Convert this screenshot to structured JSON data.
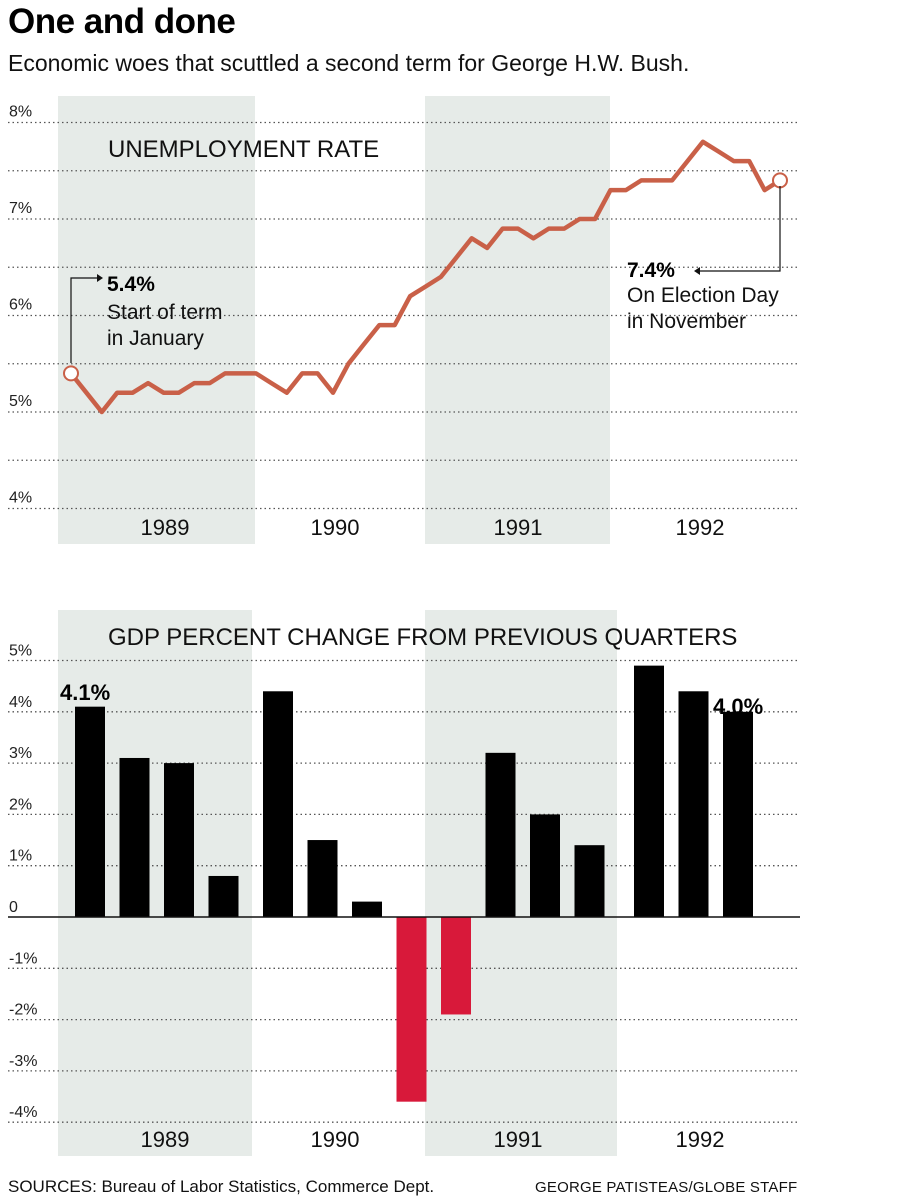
{
  "title": "One and done",
  "subtitle": "Economic woes that scuttled a second term for George H.W. Bush.",
  "sources": "SOURCES: Bureau of Labor Statistics, Commerce Dept.",
  "credit": "GEORGE PATISTEAS/GLOBE STAFF",
  "colors": {
    "shade": "#e6ebe8",
    "line": "#c96048",
    "bar_positive": "#000000",
    "bar_negative": "#d8193a",
    "grid": "#555555"
  },
  "chart_data": [
    {
      "type": "line",
      "title": "UNEMPLOYMENT RATE",
      "unit": "percent",
      "ylim": [
        4,
        8
      ],
      "y_ticks": [
        "4%",
        "5%",
        "6%",
        "7%",
        "8%"
      ],
      "year_labels": [
        "1989",
        "1990",
        "1991",
        "1992"
      ],
      "shaded_years": [
        "1989",
        "1991"
      ],
      "grid": true,
      "series": [
        {
          "x": [
            "1989-01",
            "1989-02",
            "1989-03",
            "1989-04",
            "1989-05",
            "1989-06",
            "1989-07",
            "1989-08",
            "1989-09",
            "1989-10",
            "1989-11",
            "1989-12",
            "1990-01",
            "1990-02",
            "1990-03",
            "1990-04",
            "1990-05",
            "1990-06",
            "1990-07",
            "1990-08",
            "1990-09",
            "1990-10",
            "1990-11",
            "1990-12",
            "1991-01",
            "1991-02",
            "1991-03",
            "1991-04",
            "1991-05",
            "1991-06",
            "1991-07",
            "1991-08",
            "1991-09",
            "1991-10",
            "1991-11",
            "1991-12",
            "1992-01",
            "1992-02",
            "1992-03",
            "1992-04",
            "1992-05",
            "1992-06",
            "1992-07",
            "1992-08",
            "1992-09",
            "1992-10",
            "1992-11"
          ],
          "values": [
            5.4,
            5.2,
            5.0,
            5.2,
            5.2,
            5.3,
            5.2,
            5.2,
            5.3,
            5.3,
            5.4,
            5.4,
            5.4,
            5.3,
            5.2,
            5.4,
            5.4,
            5.2,
            5.5,
            5.7,
            5.9,
            5.9,
            6.2,
            6.3,
            6.4,
            6.6,
            6.8,
            6.7,
            6.9,
            6.9,
            6.8,
            6.9,
            6.9,
            7.0,
            7.0,
            7.3,
            7.3,
            7.4,
            7.4,
            7.4,
            7.6,
            7.8,
            7.7,
            7.6,
            7.6,
            7.3,
            7.4
          ]
        }
      ],
      "annotations": [
        {
          "value": "5.4%",
          "text": [
            "Start of term",
            "in January"
          ]
        },
        {
          "value": "7.4%",
          "text": [
            "On Election Day",
            "in November"
          ]
        }
      ]
    },
    {
      "type": "bar",
      "title": "GDP PERCENT CHANGE FROM PREVIOUS QUARTERS",
      "unit": "percent",
      "ylim": [
        -4,
        5
      ],
      "y_ticks": [
        "-4%",
        "-3%",
        "-2%",
        "-1%",
        "0",
        "1%",
        "2%",
        "3%",
        "4%",
        "5%"
      ],
      "year_labels": [
        "1989",
        "1990",
        "1991",
        "1992"
      ],
      "shaded_years": [
        "1989",
        "1991"
      ],
      "grid": true,
      "categories": [
        "1989 Q1",
        "1989 Q2",
        "1989 Q3",
        "1989 Q4",
        "1990 Q1",
        "1990 Q2",
        "1990 Q3",
        "1990 Q4",
        "1991 Q1",
        "1991 Q2",
        "1991 Q3",
        "1991 Q4",
        "1992 Q1",
        "1992 Q2",
        "1992 Q3",
        "1992 Q4"
      ],
      "values": [
        4.1,
        3.1,
        3.0,
        0.8,
        4.4,
        1.5,
        0.3,
        -3.6,
        -1.9,
        3.2,
        2.0,
        1.4,
        4.9,
        4.4,
        4.0,
        null
      ],
      "data_labels": {
        "first": "4.1%",
        "last": "4.0%"
      }
    }
  ]
}
